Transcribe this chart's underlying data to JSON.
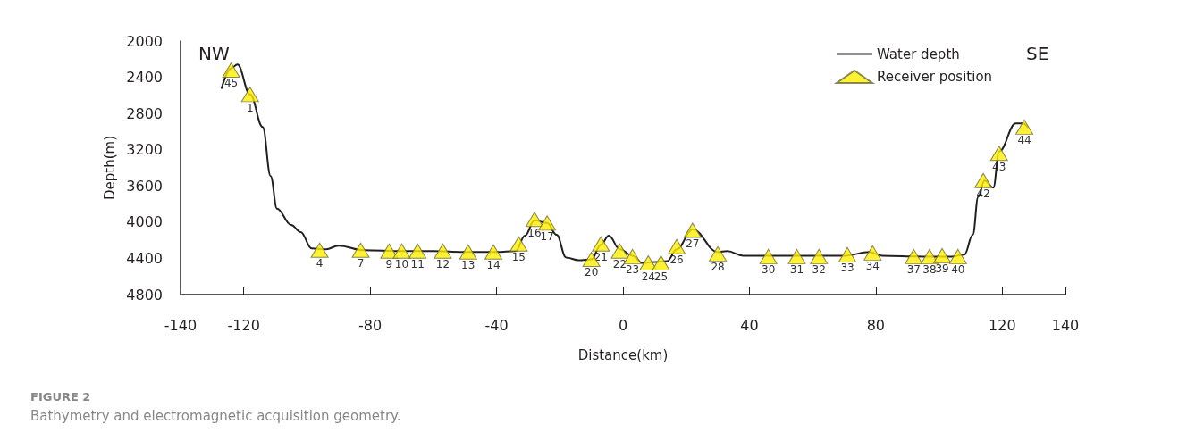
{
  "chart_data": {
    "type": "line",
    "xlabel": "Distance(km)",
    "ylabel": "Depth(m)",
    "annotations": [
      "NW",
      "SE",
      "FIGURE 2",
      "Bathymetry and electromagnetic acquisition geometry.",
      {
        "text": "45",
        "x": -124,
        "y": 2320
      },
      {
        "text": "1",
        "x": -118,
        "y": 2590
      },
      {
        "text": "4",
        "x": -96,
        "y": 4310
      },
      {
        "text": "7",
        "x": -83,
        "y": 4310
      },
      {
        "text": "9",
        "x": -74,
        "y": 4320
      },
      {
        "text": "10",
        "x": -70,
        "y": 4320
      },
      {
        "text": "11",
        "x": -65,
        "y": 4320
      },
      {
        "text": "12",
        "x": -57,
        "y": 4320
      },
      {
        "text": "13",
        "x": -49,
        "y": 4330
      },
      {
        "text": "14",
        "x": -41,
        "y": 4330
      },
      {
        "text": "15",
        "x": -33,
        "y": 4240
      },
      {
        "text": "16",
        "x": -28,
        "y": 3970
      },
      {
        "text": "17",
        "x": -24,
        "y": 4010
      },
      {
        "text": "20",
        "x": -10,
        "y": 4410
      },
      {
        "text": "21",
        "x": -7,
        "y": 4240
      },
      {
        "text": "22",
        "x": -1,
        "y": 4320
      },
      {
        "text": "23",
        "x": 3,
        "y": 4380
      },
      {
        "text": "24",
        "x": 8,
        "y": 4450
      },
      {
        "text": "25",
        "x": 12,
        "y": 4450
      },
      {
        "text": "26",
        "x": 17,
        "y": 4270
      },
      {
        "text": "27",
        "x": 22,
        "y": 4090
      },
      {
        "text": "28",
        "x": 30,
        "y": 4350
      },
      {
        "text": "30",
        "x": 46,
        "y": 4380
      },
      {
        "text": "31",
        "x": 55,
        "y": 4380
      },
      {
        "text": "32",
        "x": 62,
        "y": 4380
      },
      {
        "text": "33",
        "x": 71,
        "y": 4360
      },
      {
        "text": "34",
        "x": 79,
        "y": 4340
      },
      {
        "text": "37",
        "x": 92,
        "y": 4380
      },
      {
        "text": "38",
        "x": 97,
        "y": 4380
      },
      {
        "text": "39",
        "x": 101,
        "y": 4370
      },
      {
        "text": "40",
        "x": 106,
        "y": 4380
      },
      {
        "text": "42",
        "x": 114,
        "y": 3540
      },
      {
        "text": "43",
        "x": 119,
        "y": 3240
      },
      {
        "text": "44",
        "x": 127,
        "y": 2950
      }
    ],
    "xlim": [
      -140,
      140
    ],
    "xticks": [
      -140,
      -120,
      -80,
      -40,
      0,
      40,
      80,
      120,
      140
    ],
    "ylim": [
      4800,
      2000
    ],
    "yticks": [
      2000,
      2400,
      2800,
      3200,
      3600,
      4000,
      4400,
      4800
    ],
    "grid": false,
    "legend": "top right",
    "line_style": "solid",
    "series": [
      {
        "name": "Water depth",
        "marker": "none",
        "color": "#231f20",
        "x": [
          -127,
          -124,
          -122,
          -118,
          -114,
          -111.5,
          -109.5,
          -105,
          -102,
          -98.5,
          -94,
          -90,
          -82,
          -70,
          -60,
          -50,
          -40,
          -34,
          -31,
          -28,
          -24,
          -21,
          -18,
          -14,
          -10,
          -7,
          -4.5,
          -1,
          3,
          6,
          10,
          14,
          17,
          22,
          30,
          33,
          38,
          50,
          70,
          78,
          82,
          95,
          104,
          108,
          110.7,
          112.4,
          114.4,
          117.2,
          119,
          124.3,
          126.6,
          128
        ],
        "values": [
          2520,
          2300,
          2260,
          2590,
          2950,
          3490,
          3850,
          4030,
          4110,
          4290,
          4300,
          4260,
          4310,
          4320,
          4320,
          4330,
          4330,
          4320,
          4150,
          3980,
          4010,
          4140,
          4390,
          4420,
          4410,
          4250,
          4150,
          4300,
          4370,
          4450,
          4440,
          4430,
          4300,
          4080,
          4330,
          4320,
          4370,
          4370,
          4370,
          4330,
          4370,
          4380,
          4380,
          4360,
          4140,
          3720,
          3540,
          3620,
          3220,
          2910,
          2910,
          2950
        ]
      },
      {
        "name": "Receiver position",
        "type": "scatter",
        "marker": "triangle",
        "color": "#ffee00",
        "x": [
          -124,
          -118,
          -96,
          -83,
          -74,
          -70,
          -65,
          -57,
          -49,
          -41,
          -33,
          -28,
          -24,
          -10,
          -7,
          -1,
          3,
          8,
          12,
          17,
          22,
          30,
          46,
          55,
          62,
          71,
          79,
          92,
          97,
          101,
          106,
          114,
          119,
          127
        ],
        "values": [
          2320,
          2590,
          4310,
          4310,
          4320,
          4320,
          4320,
          4320,
          4330,
          4330,
          4240,
          3970,
          4010,
          4410,
          4240,
          4320,
          4380,
          4450,
          4450,
          4270,
          4090,
          4350,
          4380,
          4380,
          4380,
          4360,
          4340,
          4380,
          4380,
          4370,
          4380,
          3540,
          3240,
          2950
        ]
      }
    ]
  }
}
